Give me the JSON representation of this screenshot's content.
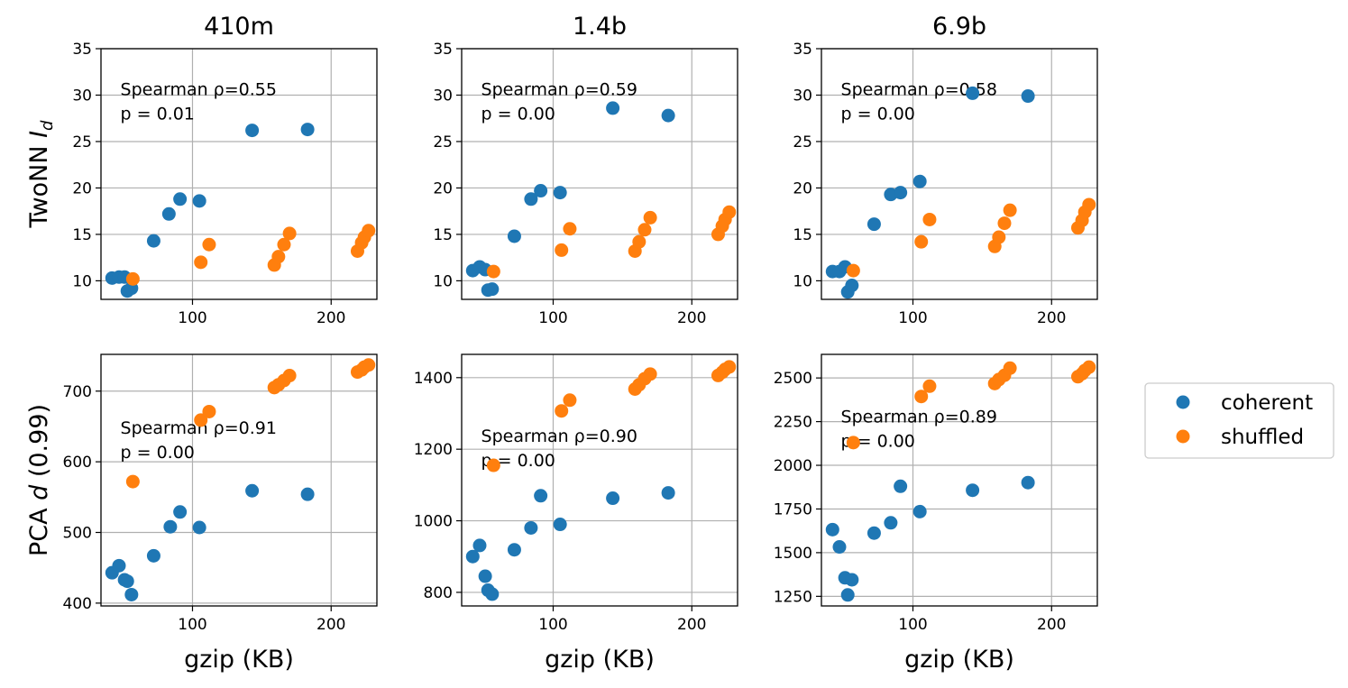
{
  "chart_data": [
    {
      "type": "scatter",
      "model": "410m",
      "column_title": "410m",
      "row": 0,
      "ylabel_text": "TwoNN ",
      "ylabel_symbol": "I",
      "ylabel_sub": "d",
      "xlabel": "",
      "xlim": [
        34,
        233
      ],
      "xticks": [
        "100",
        "200"
      ],
      "xtick_values": [
        100,
        200
      ],
      "ylim": [
        8,
        35
      ],
      "yticks": [
        "10",
        "15",
        "20",
        "25",
        "30",
        "35"
      ],
      "ytick_values": [
        10,
        15,
        20,
        25,
        30,
        35
      ],
      "grid": true,
      "annotation_line1": "Spearman ρ=0.55",
      "annotation_line2": "p = 0.01",
      "annotation_anchor": [
        48,
        30
      ],
      "series": [
        {
          "name": "coherent",
          "points": [
            [
              42,
              10.3
            ],
            [
              47,
              10.4
            ],
            [
              51,
              10.4
            ],
            [
              53,
              8.9
            ],
            [
              56,
              9.2
            ],
            [
              72,
              14.3
            ],
            [
              83,
              17.2
            ],
            [
              91,
              18.8
            ],
            [
              105,
              18.6
            ],
            [
              143,
              26.2
            ],
            [
              183,
              26.3
            ]
          ]
        },
        {
          "name": "shuffled",
          "points": [
            [
              57,
              10.2
            ],
            [
              106,
              12.0
            ],
            [
              112,
              13.9
            ],
            [
              159,
              11.7
            ],
            [
              162,
              12.6
            ],
            [
              166,
              13.9
            ],
            [
              170,
              15.1
            ],
            [
              219,
              13.2
            ],
            [
              222,
              14.1
            ],
            [
              224,
              14.7
            ],
            [
              227,
              15.4
            ]
          ]
        }
      ]
    },
    {
      "type": "scatter",
      "model": "1.4b",
      "column_title": "1.4b",
      "row": 0,
      "xlabel": "",
      "xlim": [
        34,
        233
      ],
      "xticks": [
        "100",
        "200"
      ],
      "xtick_values": [
        100,
        200
      ],
      "ylim": [
        8,
        35
      ],
      "yticks": [
        "10",
        "15",
        "20",
        "25",
        "30",
        "35"
      ],
      "ytick_values": [
        10,
        15,
        20,
        25,
        30,
        35
      ],
      "grid": true,
      "annotation_line1": "Spearman ρ=0.59",
      "annotation_line2": "p = 0.00",
      "annotation_anchor": [
        48,
        30
      ],
      "series": [
        {
          "name": "coherent",
          "points": [
            [
              42,
              11.1
            ],
            [
              47,
              11.5
            ],
            [
              51,
              11.2
            ],
            [
              53,
              9.0
            ],
            [
              56,
              9.1
            ],
            [
              72,
              14.8
            ],
            [
              84,
              18.8
            ],
            [
              91,
              19.7
            ],
            [
              105,
              19.5
            ],
            [
              143,
              28.6
            ],
            [
              183,
              27.8
            ]
          ]
        },
        {
          "name": "shuffled",
          "points": [
            [
              57,
              11.0
            ],
            [
              106,
              13.3
            ],
            [
              112,
              15.6
            ],
            [
              159,
              13.2
            ],
            [
              162,
              14.2
            ],
            [
              166,
              15.5
            ],
            [
              170,
              16.8
            ],
            [
              219,
              15.0
            ],
            [
              222,
              15.9
            ],
            [
              224,
              16.6
            ],
            [
              227,
              17.4
            ]
          ]
        }
      ]
    },
    {
      "type": "scatter",
      "model": "6.9b",
      "column_title": "6.9b",
      "row": 0,
      "xlabel": "",
      "xlim": [
        34,
        233
      ],
      "xticks": [
        "100",
        "200"
      ],
      "xtick_values": [
        100,
        200
      ],
      "ylim": [
        8,
        35
      ],
      "yticks": [
        "10",
        "15",
        "20",
        "25",
        "30",
        "35"
      ],
      "ytick_values": [
        10,
        15,
        20,
        25,
        30,
        35
      ],
      "grid": true,
      "annotation_line1": "Spearman ρ=0.58",
      "annotation_line2": "p = 0.00",
      "annotation_anchor": [
        48,
        30
      ],
      "series": [
        {
          "name": "coherent",
          "points": [
            [
              42,
              11.0
            ],
            [
              47,
              11.0
            ],
            [
              51,
              11.5
            ],
            [
              53,
              8.8
            ],
            [
              56,
              9.5
            ],
            [
              72,
              16.1
            ],
            [
              84,
              19.3
            ],
            [
              91,
              19.5
            ],
            [
              105,
              20.7
            ],
            [
              143,
              30.2
            ],
            [
              183,
              29.9
            ]
          ]
        },
        {
          "name": "shuffled",
          "points": [
            [
              57,
              11.1
            ],
            [
              106,
              14.2
            ],
            [
              112,
              16.6
            ],
            [
              159,
              13.7
            ],
            [
              162,
              14.7
            ],
            [
              166,
              16.2
            ],
            [
              170,
              17.6
            ],
            [
              219,
              15.7
            ],
            [
              222,
              16.5
            ],
            [
              224,
              17.4
            ],
            [
              227,
              18.2
            ]
          ]
        }
      ]
    },
    {
      "type": "scatter",
      "model": "410m",
      "row": 1,
      "ylabel_text": "PCA ",
      "ylabel_symbol": "d",
      "ylabel_after": " (0.99)",
      "xlabel": "gzip (KB)",
      "xlim": [
        34,
        233
      ],
      "xticks": [
        "100",
        "200"
      ],
      "xtick_values": [
        100,
        200
      ],
      "ylim": [
        396,
        752
      ],
      "yticks": [
        "400",
        "500",
        "600",
        "700"
      ],
      "ytick_values": [
        400,
        500,
        600,
        700
      ],
      "grid": true,
      "annotation_line1": "Spearman ρ=0.91",
      "annotation_line2": "p = 0.00",
      "annotation_anchor": [
        48,
        640
      ],
      "series": [
        {
          "name": "coherent",
          "points": [
            [
              42,
              443
            ],
            [
              47,
              453
            ],
            [
              51,
              433
            ],
            [
              53,
              431
            ],
            [
              56,
              412
            ],
            [
              72,
              467
            ],
            [
              84,
              508
            ],
            [
              91,
              529
            ],
            [
              105,
              507
            ],
            [
              143,
              559
            ],
            [
              183,
              554
            ]
          ]
        },
        {
          "name": "shuffled",
          "points": [
            [
              57,
              572
            ],
            [
              106,
              659
            ],
            [
              112,
              671
            ],
            [
              159,
              705
            ],
            [
              162,
              709
            ],
            [
              166,
              715
            ],
            [
              170,
              722
            ],
            [
              219,
              727
            ],
            [
              222,
              730
            ],
            [
              224,
              734
            ],
            [
              227,
              737
            ]
          ]
        }
      ]
    },
    {
      "type": "scatter",
      "model": "1.4b",
      "row": 1,
      "xlabel": "gzip (KB)",
      "xlim": [
        34,
        233
      ],
      "xticks": [
        "100",
        "200"
      ],
      "xtick_values": [
        100,
        200
      ],
      "ylim": [
        762,
        1465
      ],
      "yticks": [
        "800",
        "1000",
        "1200",
        "1400"
      ],
      "ytick_values": [
        800,
        1000,
        1200,
        1400
      ],
      "grid": true,
      "annotation_line1": "Spearman ρ=0.90",
      "annotation_line2": "p = 0.00",
      "annotation_anchor": [
        48,
        1220
      ],
      "series": [
        {
          "name": "coherent",
          "points": [
            [
              42,
              900
            ],
            [
              47,
              931
            ],
            [
              51,
              845
            ],
            [
              53,
              806
            ],
            [
              56,
              795
            ],
            [
              72,
              919
            ],
            [
              84,
              980
            ],
            [
              91,
              1070
            ],
            [
              105,
              990
            ],
            [
              143,
              1063
            ],
            [
              183,
              1078
            ]
          ]
        },
        {
          "name": "shuffled",
          "points": [
            [
              57,
              1155
            ],
            [
              106,
              1307
            ],
            [
              112,
              1337
            ],
            [
              159,
              1368
            ],
            [
              162,
              1380
            ],
            [
              166,
              1397
            ],
            [
              170,
              1410
            ],
            [
              219,
              1406
            ],
            [
              222,
              1415
            ],
            [
              224,
              1423
            ],
            [
              227,
              1430
            ]
          ]
        }
      ]
    },
    {
      "type": "scatter",
      "model": "6.9b",
      "row": 1,
      "xlabel": "gzip (KB)",
      "xlim": [
        34,
        233
      ],
      "xticks": [
        "100",
        "200"
      ],
      "xtick_values": [
        100,
        200
      ],
      "ylim": [
        1195,
        2635
      ],
      "yticks": [
        "1250",
        "1500",
        "1750",
        "2000",
        "2250",
        "2500"
      ],
      "ytick_values": [
        1250,
        1500,
        1750,
        2000,
        2250,
        2500
      ],
      "grid": true,
      "annotation_line1": "Spearman ρ=0.89",
      "annotation_line2": "p = 0.00",
      "annotation_anchor": [
        48,
        2245
      ],
      "series": [
        {
          "name": "coherent",
          "points": [
            [
              42,
              1632
            ],
            [
              47,
              1533
            ],
            [
              51,
              1356
            ],
            [
              53,
              1258
            ],
            [
              56,
              1345
            ],
            [
              72,
              1612
            ],
            [
              84,
              1671
            ],
            [
              91,
              1880
            ],
            [
              105,
              1735
            ],
            [
              143,
              1857
            ],
            [
              183,
              1901
            ]
          ]
        },
        {
          "name": "shuffled",
          "points": [
            [
              57,
              2130
            ],
            [
              106,
              2394
            ],
            [
              112,
              2453
            ],
            [
              159,
              2468
            ],
            [
              162,
              2491
            ],
            [
              166,
              2515
            ],
            [
              170,
              2556
            ],
            [
              219,
              2507
            ],
            [
              222,
              2524
            ],
            [
              224,
              2543
            ],
            [
              227,
              2562
            ]
          ]
        }
      ]
    }
  ],
  "legend": {
    "placement": "right",
    "entries": [
      {
        "label": "coherent",
        "color": "#1f77b4"
      },
      {
        "label": "shuffled",
        "color": "#ff7f0e"
      }
    ]
  },
  "colors": {
    "coherent": "#1f77b4",
    "shuffled": "#ff7f0e",
    "grid": "#b0b0b0",
    "axes": "#000000"
  }
}
